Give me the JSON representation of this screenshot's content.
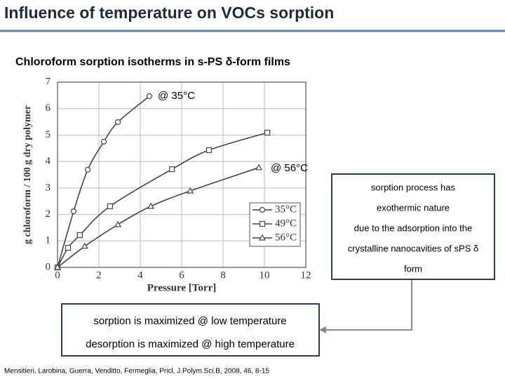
{
  "slide": {
    "title": "Influence of temperature on VOCs sorption",
    "note": [
      "sorption process has",
      "exothermic nature",
      "due to the adsorption into the",
      "crystalline nanocavities of sPS δ",
      "form"
    ],
    "conclusion": [
      "sorption is maximized @ low temperature",
      "desorption is maximized @ high  temperature"
    ],
    "citation": "Mensitieri, Larobina, Guerra, Venditto, Fermeglia, Pricl, J.Polym.Sci.B, 2008, 46, 8-15"
  },
  "chart_data": {
    "type": "line",
    "title": "Chloroform sorption isotherms in s-PS δ-form films",
    "x_label": "Pressure [Torr]",
    "y_label": "g chloroform / 100 g dry polymer",
    "xlim": [
      0,
      12
    ],
    "xticks": [
      0,
      2,
      4,
      6,
      8,
      10,
      12
    ],
    "ylim": [
      0,
      7
    ],
    "yticks": [
      0,
      1,
      2,
      3,
      4,
      5,
      6,
      7
    ],
    "grid": true,
    "annotations": [
      "@ 35°C",
      "@ 56°C"
    ],
    "series": [
      {
        "name": "35°C",
        "color": "#444444",
        "marker": "circle",
        "x": [
          0,
          0.78,
          1.46,
          2.24,
          2.92,
          4.44
        ],
        "values": [
          0,
          2.12,
          3.69,
          4.75,
          5.49,
          6.47
        ]
      },
      {
        "name": "49°C",
        "color": "#444444",
        "marker": "square",
        "x": [
          0,
          0.51,
          1.08,
          2.54,
          5.53,
          7.32,
          10.14
        ],
        "values": [
          0,
          0.74,
          1.22,
          2.31,
          3.71,
          4.43,
          5.09
        ]
      },
      {
        "name": "56°C",
        "color": "#444444",
        "marker": "triangle",
        "x": [
          0,
          1.32,
          2.92,
          4.51,
          6.41,
          9.73
        ],
        "values": [
          0,
          0.8,
          1.62,
          2.31,
          2.89,
          3.77
        ]
      }
    ]
  }
}
